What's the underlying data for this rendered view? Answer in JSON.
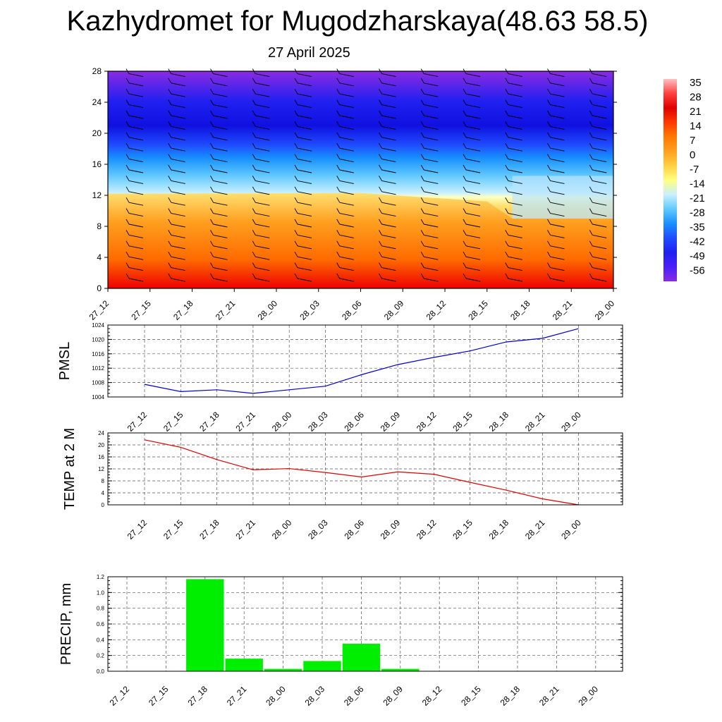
{
  "title": "Kazhydromet for Mugodzharskaya(48.63 58.5)",
  "subtitle": "27 April 2025",
  "colors": {
    "pmsl_line": "#0000cc",
    "temp_line": "#dd0000",
    "precip_bar": "#00ee00",
    "grid": "#555555"
  },
  "chart_data": [
    {
      "type": "heatmap",
      "title": "",
      "x_categories": [
        "27_12",
        "27_15",
        "27_18",
        "27_21",
        "28_00",
        "28_03",
        "28_06",
        "28_09",
        "28_12",
        "28_15",
        "28_18",
        "28_21",
        "29_00"
      ],
      "ylim": [
        0,
        28
      ],
      "y_ticks": [
        0,
        4,
        8,
        12,
        16,
        20,
        24,
        28
      ],
      "colorbar_labels": [
        "35",
        "28",
        "21",
        "14",
        "7",
        "0",
        "-7",
        "-14",
        "-21",
        "-28",
        "-35",
        "-42",
        "-49",
        "-56"
      ],
      "colorbar_colors": [
        "#ffc0c0",
        "#ff4040",
        "#e00000",
        "#ff3800",
        "#ff7a00",
        "#ffa020",
        "#ffd040",
        "#ffff80",
        "#c8f0ff",
        "#60c8ff",
        "#1890ff",
        "#1f4cff",
        "#2020f0",
        "#4a20f8",
        "#8a2be2"
      ],
      "has_wind_barbs": true
    },
    {
      "type": "line",
      "ylabel": "PMSL",
      "categories": [
        "27_12",
        "27_15",
        "27_18",
        "27_21",
        "28_00",
        "28_03",
        "28_06",
        "28_09",
        "28_12",
        "28_15",
        "28_18",
        "28_21",
        "29_00"
      ],
      "values": [
        1007.5,
        1005.5,
        1006,
        1005,
        1006,
        1007,
        1010.2,
        1013,
        1015,
        1016.8,
        1019.3,
        1020.3,
        1023
      ],
      "ylim": [
        1004,
        1024
      ],
      "y_ticks": [
        "1004",
        "1008",
        "1012",
        "1016",
        "1020",
        "1024"
      ],
      "grid": true
    },
    {
      "type": "line",
      "ylabel": "TEMP at 2 M",
      "categories": [
        "27_12",
        "27_15",
        "27_18",
        "27_21",
        "28_00",
        "28_03",
        "28_06",
        "28_09",
        "28_12",
        "28_15",
        "28_18",
        "28_21",
        "29_00"
      ],
      "values": [
        21.7,
        19.2,
        15.1,
        11.7,
        12.1,
        10.8,
        9.3,
        11,
        10.2,
        7.5,
        4.9,
        2,
        0
      ],
      "ylim": [
        0,
        24
      ],
      "y_ticks": [
        "0",
        "4",
        "8",
        "12",
        "16",
        "20",
        "24"
      ],
      "grid": true
    },
    {
      "type": "bar",
      "ylabel": "PRECIP, mm",
      "categories": [
        "27_12",
        "27_15",
        "27_18",
        "27_21",
        "28_00",
        "28_03",
        "28_06",
        "28_09",
        "28_12",
        "28_15",
        "28_18",
        "28_21",
        "29_00"
      ],
      "values": [
        0,
        0,
        1.17,
        0.16,
        0.03,
        0.13,
        0.35,
        0.03,
        0,
        0,
        0,
        0,
        0
      ],
      "ylim": [
        0,
        1.2
      ],
      "y_ticks": [
        "0.0",
        "0.2",
        "0.4",
        "0.6",
        "0.8",
        "1.0",
        "1.2"
      ],
      "grid": true
    }
  ]
}
